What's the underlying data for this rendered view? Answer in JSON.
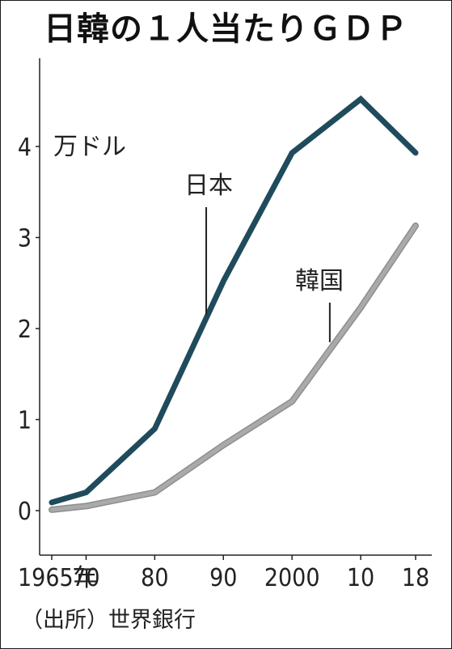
{
  "chart_data": {
    "type": "line",
    "title": "日韓の１人当たりＧＤＰ",
    "ylabel": "万ドル",
    "source": "（出所）世界銀行",
    "x": [
      1965,
      1970,
      1980,
      1990,
      2000,
      2010,
      2018
    ],
    "x_tick_labels": [
      "1965年",
      "70",
      "80",
      "90",
      "2000",
      "10",
      "18"
    ],
    "ylim": [
      -0.5,
      5
    ],
    "y_ticks": [
      0,
      1,
      2,
      3,
      4
    ],
    "grid": false,
    "series": [
      {
        "name": "日本",
        "color": "#1f4b5c",
        "values": [
          0.09,
          0.2,
          0.9,
          2.52,
          3.93,
          4.52,
          3.93
        ],
        "label_at": [
          1987.5,
          2.15
        ]
      },
      {
        "name": "韓国",
        "color": "#aaaaaa",
        "values": [
          0.01,
          0.05,
          0.2,
          0.72,
          1.2,
          2.23,
          3.13
        ],
        "label_at": [
          2005.5,
          1.85
        ]
      }
    ]
  }
}
